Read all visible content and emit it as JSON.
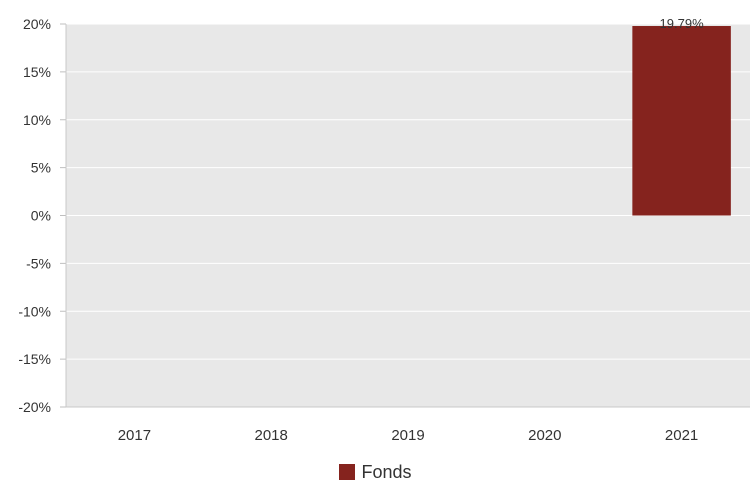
{
  "chart_data": {
    "type": "bar",
    "title": "",
    "xlabel": "",
    "ylabel": "",
    "categories": [
      "2017",
      "2018",
      "2019",
      "2020",
      "2021"
    ],
    "series": [
      {
        "name": "Fonds",
        "values": [
          null,
          null,
          null,
          null,
          19.79
        ],
        "color": "#85231E"
      }
    ],
    "data_labels": [
      "",
      "",
      "",
      "",
      "19.79%"
    ],
    "ylim": [
      -20,
      20
    ],
    "yticks": [
      20,
      15,
      10,
      5,
      0,
      -5,
      -10,
      -15,
      -20
    ],
    "ytick_labels": [
      "20%",
      "15%",
      "10%",
      "5%",
      "0%",
      "-5%",
      "-10%",
      "-15%",
      "-20%"
    ],
    "grid": true,
    "legend_position": "bottom-center",
    "plot_background": "#E8E8E8",
    "gridline_color": "#FFFFFF"
  }
}
